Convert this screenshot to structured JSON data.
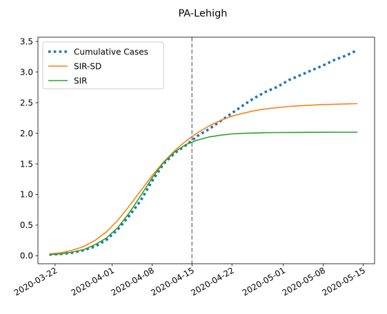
{
  "chart_data": {
    "type": "line",
    "title": "PA-Lehigh",
    "xlabel": "",
    "ylabel": "",
    "xlim": [
      "2020-03-19",
      "2020-05-17"
    ],
    "ylim": [
      -0.13,
      3.57
    ],
    "x_ticks": [
      "2020-03-22",
      "2020-04-01",
      "2020-04-08",
      "2020-04-15",
      "2020-04-22",
      "2020-05-01",
      "2020-05-08",
      "2020-05-15"
    ],
    "y_ticks": [
      "0.0",
      "0.5",
      "1.0",
      "1.5",
      "2.0",
      "2.5",
      "3.0",
      "3.5"
    ],
    "vline": {
      "x": "2020-04-15",
      "color": "#7f7f7f",
      "style": "dashed"
    },
    "legend_position": "top-left",
    "grid": false,
    "series": [
      {
        "name": "Cumulative Cases",
        "color": "#1f77b4",
        "style": "dotted",
        "x": [
          "2020-03-21",
          "2020-03-23",
          "2020-03-25",
          "2020-03-27",
          "2020-03-29",
          "2020-03-31",
          "2020-04-02",
          "2020-04-04",
          "2020-04-06",
          "2020-04-08",
          "2020-04-10",
          "2020-04-12",
          "2020-04-14",
          "2020-04-16",
          "2020-04-18",
          "2020-04-20",
          "2020-04-22",
          "2020-04-24",
          "2020-04-26",
          "2020-04-28",
          "2020-04-30",
          "2020-05-02",
          "2020-05-04",
          "2020-05-06",
          "2020-05-08",
          "2020-05-10",
          "2020-05-12",
          "2020-05-14"
        ],
        "y": [
          0.02,
          0.03,
          0.05,
          0.09,
          0.15,
          0.26,
          0.43,
          0.65,
          0.9,
          1.22,
          1.5,
          1.68,
          1.81,
          1.96,
          2.07,
          2.2,
          2.33,
          2.46,
          2.58,
          2.68,
          2.76,
          2.87,
          2.95,
          3.03,
          3.11,
          3.2,
          3.27,
          3.36
        ]
      },
      {
        "name": "SIR-SD",
        "color": "#ff7f0e",
        "style": "solid",
        "x": [
          "2020-03-21",
          "2020-03-23",
          "2020-03-25",
          "2020-03-27",
          "2020-03-29",
          "2020-03-31",
          "2020-04-02",
          "2020-04-04",
          "2020-04-06",
          "2020-04-08",
          "2020-04-10",
          "2020-04-12",
          "2020-04-14",
          "2020-04-16",
          "2020-04-18",
          "2020-04-20",
          "2020-04-22",
          "2020-04-24",
          "2020-04-26",
          "2020-04-28",
          "2020-04-30",
          "2020-05-02",
          "2020-05-04",
          "2020-05-06",
          "2020-05-08",
          "2020-05-10",
          "2020-05-12",
          "2020-05-14"
        ],
        "y": [
          0.03,
          0.05,
          0.09,
          0.15,
          0.25,
          0.39,
          0.58,
          0.81,
          1.06,
          1.31,
          1.53,
          1.72,
          1.88,
          2.01,
          2.12,
          2.21,
          2.28,
          2.33,
          2.37,
          2.4,
          2.42,
          2.44,
          2.45,
          2.46,
          2.47,
          2.475,
          2.48,
          2.485
        ]
      },
      {
        "name": "SIR",
        "color": "#2ca02c",
        "style": "solid",
        "x": [
          "2020-03-21",
          "2020-03-23",
          "2020-03-25",
          "2020-03-27",
          "2020-03-29",
          "2020-03-31",
          "2020-04-02",
          "2020-04-04",
          "2020-04-06",
          "2020-04-08",
          "2020-04-10",
          "2020-04-12",
          "2020-04-14",
          "2020-04-16",
          "2020-04-18",
          "2020-04-20",
          "2020-04-22",
          "2020-04-24",
          "2020-04-26",
          "2020-04-28",
          "2020-04-30",
          "2020-05-02",
          "2020-05-04",
          "2020-05-06",
          "2020-05-08",
          "2020-05-10",
          "2020-05-12",
          "2020-05-14"
        ],
        "y": [
          0.02,
          0.03,
          0.06,
          0.1,
          0.18,
          0.29,
          0.46,
          0.7,
          0.98,
          1.27,
          1.52,
          1.7,
          1.82,
          1.89,
          1.94,
          1.97,
          1.99,
          2.0,
          2.005,
          2.01,
          2.012,
          2.014,
          2.015,
          2.016,
          2.017,
          2.018,
          2.018,
          2.018
        ]
      }
    ]
  }
}
